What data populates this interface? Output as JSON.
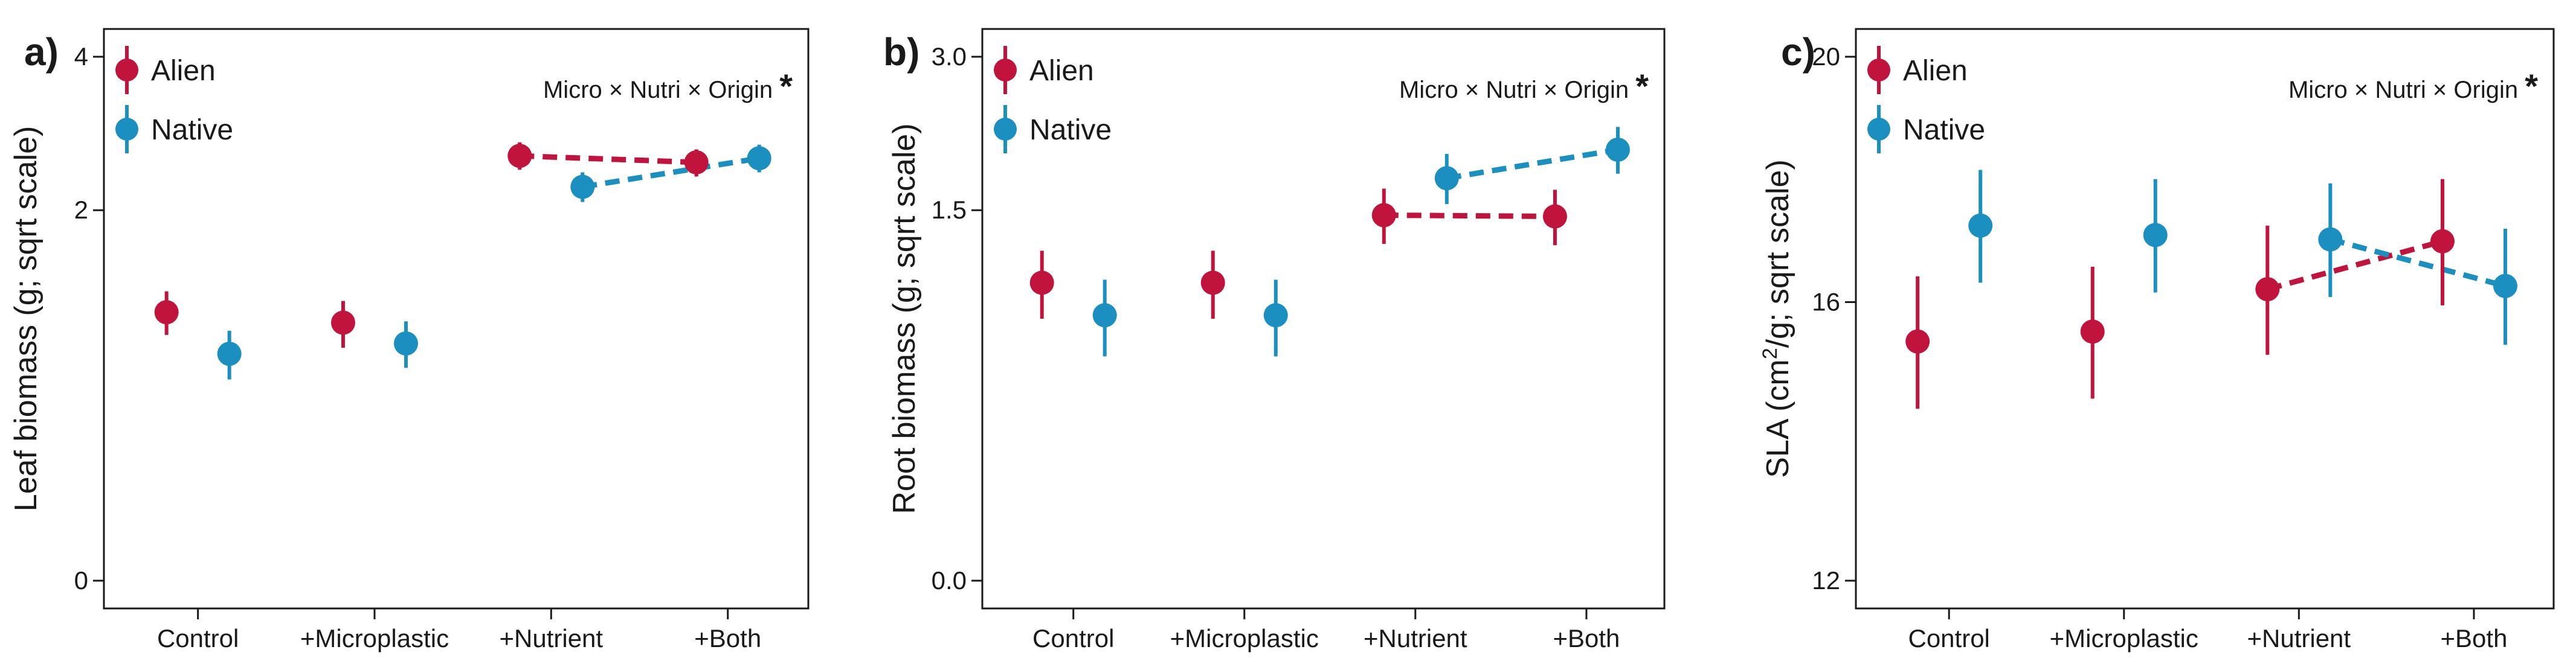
{
  "colors": {
    "alien": "#c0143c",
    "native": "#1a8fc0"
  },
  "chart_data": [
    {
      "type": "scatter",
      "panel": "a)",
      "ylabel": "Leaf biomass (g; sqrt scale)",
      "ylabel_parts": [],
      "scale": "sqrt",
      "ylim": [
        0,
        4
      ],
      "yticks": [
        0,
        2,
        4
      ],
      "ytick_labels": [
        "0",
        "2",
        "4"
      ],
      "categories": [
        "Control",
        "+Microplastic",
        "+Nutrient",
        "+Both"
      ],
      "annotation": "Micro × Nutri × Origin",
      "annotation_mark": "*",
      "legend": [
        "Alien",
        "Native"
      ],
      "series": [
        {
          "name": "Alien",
          "values": [
            1.05,
            0.97,
            2.63,
            2.55
          ],
          "ci_low": [
            0.88,
            0.79,
            2.46,
            2.38
          ],
          "ci_high": [
            1.22,
            1.14,
            2.8,
            2.71
          ]
        },
        {
          "name": "Native",
          "values": [
            0.75,
            0.82,
            2.26,
            2.6
          ],
          "ci_low": [
            0.59,
            0.66,
            2.09,
            2.43
          ],
          "ci_high": [
            0.91,
            0.98,
            2.43,
            2.77
          ]
        }
      ],
      "dashed_pairs": [
        {
          "series": "Alien",
          "from": 2,
          "to": 3
        },
        {
          "series": "Native",
          "from": 2,
          "to": 3
        }
      ]
    },
    {
      "type": "scatter",
      "panel": "b)",
      "ylabel": "Root biomass (g; sqrt scale)",
      "ylabel_parts": [],
      "scale": "sqrt",
      "ylim": [
        0,
        3
      ],
      "yticks": [
        0,
        1.5,
        3
      ],
      "ytick_labels": [
        "0.0",
        "1.5",
        "3.0"
      ],
      "categories": [
        "Control",
        "+Microplastic",
        "+Nutrient",
        "+Both"
      ],
      "annotation": "Micro × Nutri × Origin",
      "annotation_mark": "*",
      "legend": [
        "Alien",
        "Native"
      ],
      "series": [
        {
          "name": "Alien",
          "values": [
            0.97,
            0.97,
            1.46,
            1.45
          ],
          "ci_low": [
            0.75,
            0.75,
            1.24,
            1.23
          ],
          "ci_high": [
            1.19,
            1.19,
            1.68,
            1.67
          ]
        },
        {
          "name": "Native",
          "values": [
            0.77,
            0.77,
            1.77,
            2.03
          ],
          "ci_low": [
            0.55,
            0.55,
            1.55,
            1.81
          ],
          "ci_high": [
            0.99,
            0.99,
            1.99,
            2.25
          ]
        }
      ],
      "dashed_pairs": [
        {
          "series": "Alien",
          "from": 2,
          "to": 3
        },
        {
          "series": "Native",
          "from": 2,
          "to": 3
        }
      ]
    },
    {
      "type": "scatter",
      "panel": "c)",
      "ylabel": "SLA (cm²/g; sqrt scale)",
      "ylabel_parts": [
        "SLA (cm",
        "2",
        "/g; sqrt scale)"
      ],
      "scale": "sqrt",
      "ylim": [
        12,
        20
      ],
      "yticks": [
        12,
        16,
        20
      ],
      "ytick_labels": [
        "12",
        "16",
        "20"
      ],
      "categories": [
        "Control",
        "+Microplastic",
        "+Nutrient",
        "+Both"
      ],
      "annotation": "Micro × Nutri × Origin",
      "annotation_mark": "*",
      "legend": [
        "Alien",
        "Native"
      ],
      "series": [
        {
          "name": "Alien",
          "values": [
            15.4,
            15.55,
            16.2,
            16.95
          ],
          "ci_low": [
            14.4,
            14.55,
            15.2,
            15.95
          ],
          "ci_high": [
            16.4,
            16.55,
            17.2,
            17.95
          ]
        },
        {
          "name": "Native",
          "values": [
            17.2,
            17.05,
            16.98,
            16.25
          ],
          "ci_low": [
            16.3,
            16.15,
            16.08,
            15.35
          ],
          "ci_high": [
            18.1,
            17.95,
            17.88,
            17.15
          ]
        }
      ],
      "dashed_pairs": [
        {
          "series": "Alien",
          "from": 2,
          "to": 3
        },
        {
          "series": "Native",
          "from": 2,
          "to": 3
        }
      ]
    }
  ]
}
